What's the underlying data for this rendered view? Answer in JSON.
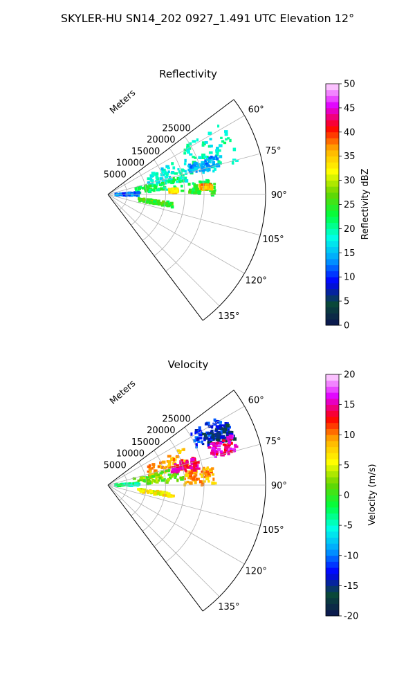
{
  "figure": {
    "title": "SKYLER-HU  SN14_202  0927_1.491 UTC Elevation 12°"
  },
  "chart_data": [
    {
      "type": "polar-sector",
      "title": "Reflectivity",
      "radial_label": "Meters",
      "radial_ticks": [
        5000,
        10000,
        15000,
        20000,
        25000
      ],
      "rlim": [
        0,
        41000
      ],
      "theta_ticks": [
        "60°",
        "75°",
        "90°",
        "105°",
        "120°",
        "135°"
      ],
      "theta_range_deg": [
        53,
        143
      ],
      "grid": true,
      "colorbar": {
        "label": "Reflectivity dBZ",
        "min": 0,
        "max": 50,
        "ticks": [
          0,
          5,
          10,
          15,
          20,
          25,
          30,
          35,
          40,
          45,
          50
        ]
      },
      "echo_cells": [
        {
          "az_deg": [
            58,
            78
          ],
          "range_m": [
            22000,
            35000
          ],
          "dbz": 19
        },
        {
          "az_deg": [
            64,
            80
          ],
          "range_m": [
            11000,
            22000
          ],
          "dbz": 18
        },
        {
          "az_deg": [
            76,
            88
          ],
          "range_m": [
            7000,
            20000
          ],
          "dbz": 22
        },
        {
          "az_deg": [
            82,
            90
          ],
          "range_m": [
            21000,
            28000
          ],
          "dbz": 24
        },
        {
          "az_deg": [
            85,
            88
          ],
          "range_m": [
            16000,
            18000
          ],
          "dbz": 34
        },
        {
          "az_deg": [
            84,
            87
          ],
          "range_m": [
            24000,
            27000
          ],
          "dbz": 36
        },
        {
          "az_deg": [
            70,
            76
          ],
          "range_m": [
            22000,
            30000
          ],
          "dbz": 14
        },
        {
          "az_deg": [
            86,
            92
          ],
          "range_m": [
            2000,
            8000
          ],
          "dbz": 12
        },
        {
          "az_deg": [
            97,
            101
          ],
          "range_m": [
            8000,
            17000
          ],
          "dbz": 25
        }
      ]
    },
    {
      "type": "polar-sector",
      "title": "Velocity",
      "radial_label": "Meters",
      "radial_ticks": [
        5000,
        10000,
        15000,
        20000,
        25000
      ],
      "rlim": [
        0,
        41000
      ],
      "theta_ticks": [
        "60°",
        "75°",
        "90°",
        "105°",
        "120°",
        "135°"
      ],
      "theta_range_deg": [
        53,
        143
      ],
      "grid": true,
      "colorbar": {
        "label": "Velocity (m/s)",
        "min": -20,
        "max": 20,
        "ticks": [
          -20,
          -15,
          -10,
          -5,
          0,
          5,
          10,
          15,
          20
        ]
      },
      "echo_cells": [
        {
          "az_deg": [
            58,
            67
          ],
          "range_m": [
            25000,
            35000
          ],
          "ms": -12
        },
        {
          "az_deg": [
            62,
            70
          ],
          "range_m": [
            28000,
            35000
          ],
          "ms": -15
        },
        {
          "az_deg": [
            68,
            76
          ],
          "range_m": [
            28000,
            35000
          ],
          "ms": 15
        },
        {
          "az_deg": [
            64,
            80
          ],
          "range_m": [
            11000,
            22000
          ],
          "ms": 9
        },
        {
          "az_deg": [
            76,
            88
          ],
          "range_m": [
            7000,
            20000
          ],
          "ms": 2
        },
        {
          "az_deg": [
            80,
            90
          ],
          "range_m": [
            20000,
            28000
          ],
          "ms": 9
        },
        {
          "az_deg": [
            72,
            80
          ],
          "range_m": [
            17000,
            24000
          ],
          "ms": 14
        },
        {
          "az_deg": [
            86,
            92
          ],
          "range_m": [
            2000,
            8000
          ],
          "ms": -4
        },
        {
          "az_deg": [
            97,
            101
          ],
          "range_m": [
            8000,
            17000
          ],
          "ms": 6
        }
      ]
    }
  ],
  "colormap_stops": [
    "#0b1452",
    "#0a4a38",
    "#0000ff",
    "#00a0ff",
    "#00ffe6",
    "#00ff40",
    "#66d400",
    "#ffff00",
    "#ffb000",
    "#ff0000",
    "#e000ff",
    "#ffe0ff"
  ]
}
